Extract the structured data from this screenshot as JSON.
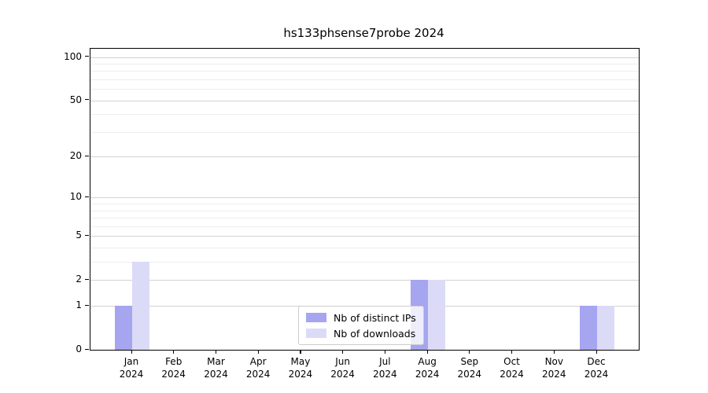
{
  "title": "hs133phsense7probe 2024",
  "chart_data": {
    "type": "bar",
    "title": "hs133phsense7probe 2024",
    "categories": [
      "Jan",
      "Feb",
      "Mar",
      "Apr",
      "May",
      "Jun",
      "Jul",
      "Aug",
      "Sep",
      "Oct",
      "Nov",
      "Dec"
    ],
    "year": "2024",
    "x_tick_labels": [
      "Jan 2024",
      "Feb 2024",
      "Mar 2024",
      "Apr 2024",
      "May 2024",
      "Jun 2024",
      "Jul 2024",
      "Aug 2024",
      "Sep 2024",
      "Oct 2024",
      "Nov 2024",
      "Dec 2024"
    ],
    "series": [
      {
        "name": "Nb of distinct IPs",
        "color": "#a5a5f0",
        "values": [
          1,
          0,
          0,
          0,
          0,
          0,
          0,
          2,
          0,
          0,
          0,
          1
        ]
      },
      {
        "name": "Nb of downloads",
        "color": "#dbdbf8",
        "values": [
          3,
          0,
          0,
          0,
          0,
          0,
          0,
          2,
          0,
          0,
          0,
          1
        ]
      }
    ],
    "xlabel": "",
    "ylabel": "",
    "y_scale": "log1p",
    "ylim": [
      0,
      114
    ],
    "y_ticks": [
      0,
      1,
      2,
      5,
      10,
      20,
      50,
      100
    ],
    "y_minor_gridlines": [
      3,
      4,
      6,
      7,
      8,
      9,
      30,
      40,
      60,
      70,
      80,
      90
    ],
    "grid": "on",
    "legend_position": "lower center"
  }
}
